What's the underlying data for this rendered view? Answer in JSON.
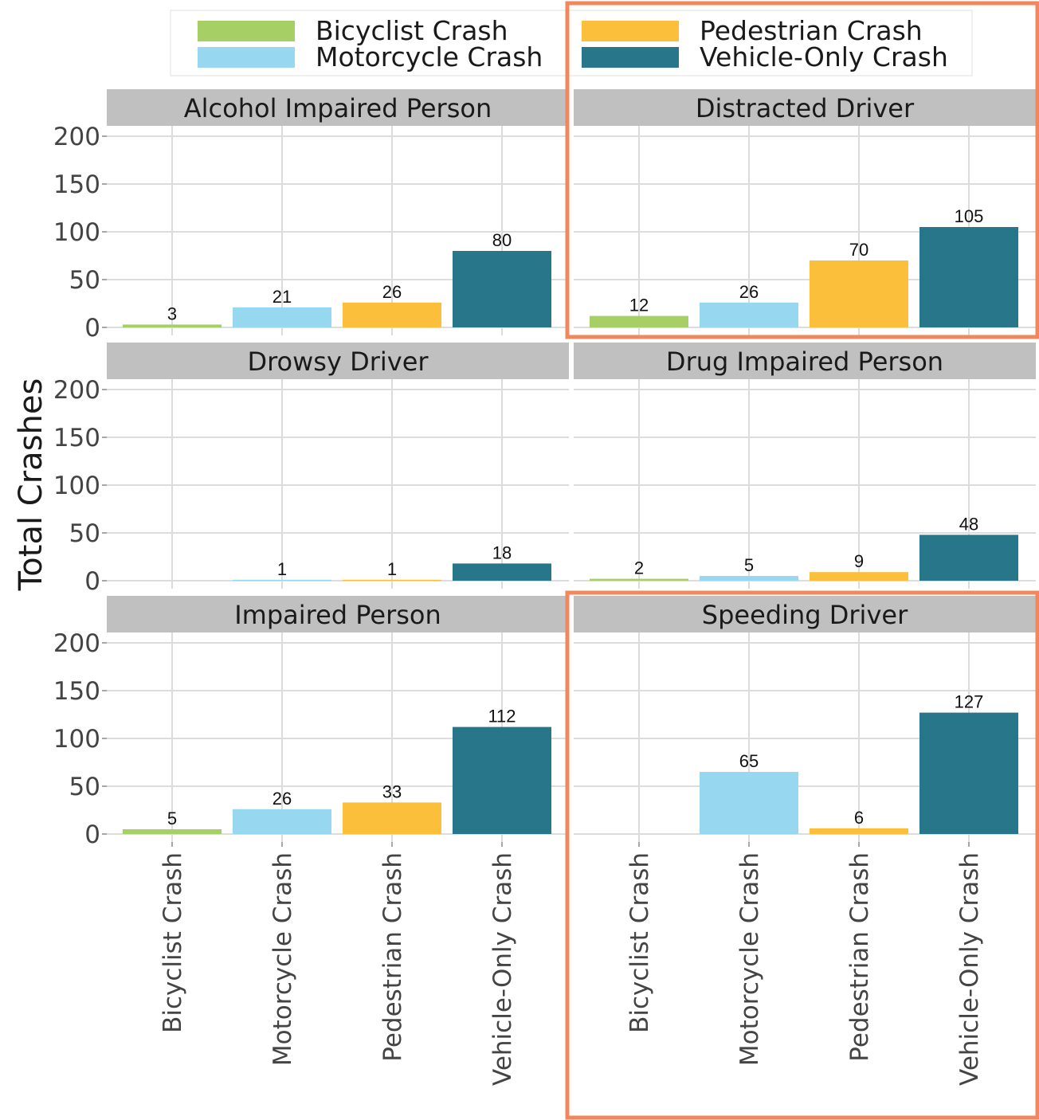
{
  "chart_data": {
    "type": "bar",
    "ylabel": "Total Crashes",
    "xlabel": "",
    "ylim": [
      0,
      200
    ],
    "yticks": [
      0,
      50,
      100,
      150,
      200
    ],
    "grid": true,
    "legend_position": "top",
    "categories": [
      "Bicyclist Crash",
      "Motorcycle Crash",
      "Pedestrian Crash",
      "Vehicle-Only Crash"
    ],
    "legend": [
      {
        "label": "Bicyclist Crash",
        "color": "#a6cf65"
      },
      {
        "label": "Pedestrian Crash",
        "color": "#fbbf3c"
      },
      {
        "label": "Motorcycle Crash",
        "color": "#97d7ef"
      },
      {
        "label": "Vehicle-Only Crash",
        "color": "#287689"
      }
    ],
    "colors": [
      "#a6cf65",
      "#97d7ef",
      "#fbbf3c",
      "#287689"
    ],
    "highlight_color": "#f0875f",
    "panels": [
      {
        "title": "Alcohol Impaired Person",
        "values": [
          3,
          21,
          26,
          80
        ],
        "highlighted": false
      },
      {
        "title": "Distracted Driver",
        "values": [
          12,
          26,
          70,
          105
        ],
        "highlighted": true
      },
      {
        "title": "Drowsy Driver",
        "values": [
          null,
          1,
          1,
          18
        ],
        "highlighted": false
      },
      {
        "title": "Drug Impaired Person",
        "values": [
          2,
          5,
          9,
          48
        ],
        "highlighted": false
      },
      {
        "title": "Impaired Person",
        "values": [
          5,
          26,
          33,
          112
        ],
        "highlighted": false
      },
      {
        "title": "Speeding Driver",
        "values": [
          null,
          65,
          6,
          127
        ],
        "highlighted": true
      }
    ]
  }
}
